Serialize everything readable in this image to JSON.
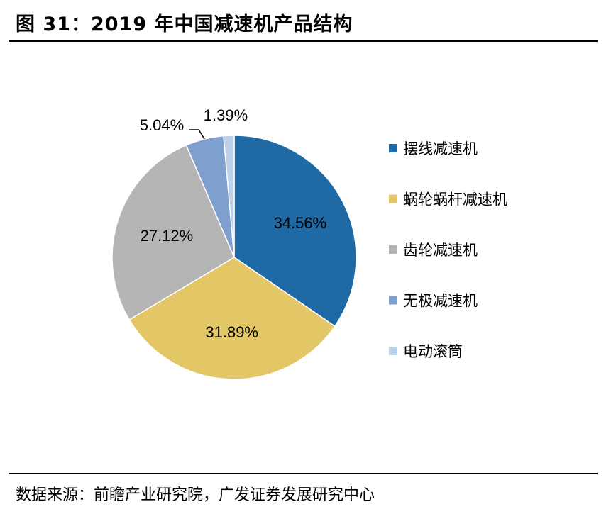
{
  "header": {
    "title": "图 31：2019 年中国减速机产品结构"
  },
  "footer": {
    "source": "数据来源：前瞻产业研究院，广发证券发展研究中心"
  },
  "chart_data": {
    "type": "pie",
    "title": "图 31：2019 年中国减速机产品结构",
    "legend_position": "right",
    "slices": [
      {
        "name": "摆线减速机",
        "value": 34.56,
        "label": "34.56%",
        "color": "#1f6aa5"
      },
      {
        "name": "蜗轮蜗杆减速机",
        "value": 31.89,
        "label": "31.89%",
        "color": "#e3c766"
      },
      {
        "name": "齿轮减速机",
        "value": 27.12,
        "label": "27.12%",
        "color": "#b5b5b5"
      },
      {
        "name": "无极减速机",
        "value": 5.04,
        "label": "5.04%",
        "color": "#7f9fcf"
      },
      {
        "name": "电动滚筒",
        "value": 1.39,
        "label": "1.39%",
        "color": "#bcd0ea"
      }
    ]
  }
}
